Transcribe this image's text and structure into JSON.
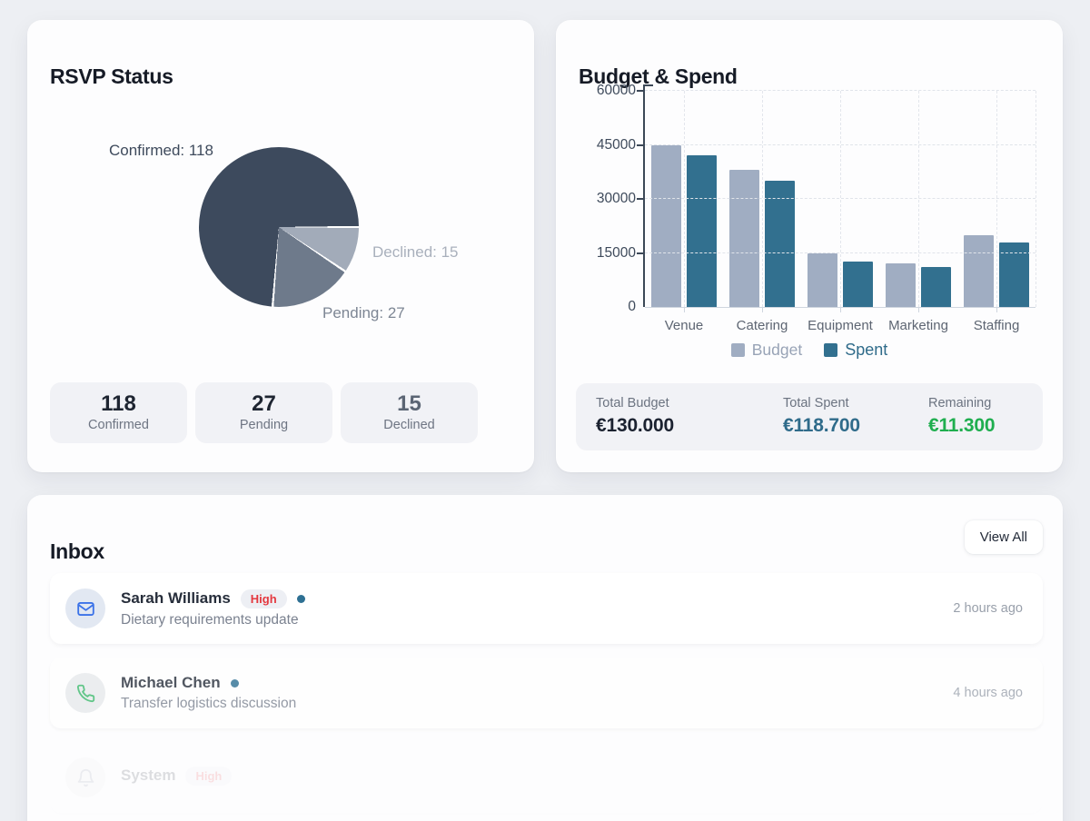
{
  "rsvp_card": {
    "title": "RSVP Status",
    "stats": [
      {
        "value": "118",
        "label": "Confirmed"
      },
      {
        "value": "27",
        "label": "Pending"
      },
      {
        "value": "15",
        "label": "Declined"
      }
    ]
  },
  "budget_card": {
    "title": "Budget & Spend",
    "totals": [
      {
        "label": "Total Budget",
        "value": "€130.000",
        "color": "#1b2230"
      },
      {
        "label": "Total Spent",
        "value": "€118.700",
        "color": "#2f6b8a"
      },
      {
        "label": "Remaining",
        "value": "€11.300",
        "color": "#1fae4f"
      }
    ]
  },
  "inbox_card": {
    "title": "Inbox",
    "view_all_label": "View All",
    "messages": [
      {
        "sender": "Sarah Williams",
        "badge": "High",
        "unread": true,
        "subject": "Dietary requirements update",
        "time": "2 hours ago",
        "icon": "mail",
        "icon_color": "#3b72e8",
        "avatar_bg": "#e2e8f2",
        "opacity": 1
      },
      {
        "sender": "Michael Chen",
        "badge": null,
        "unread": true,
        "subject": "Transfer logistics discussion",
        "time": "4 hours ago",
        "icon": "phone",
        "icon_color": "#3cb96d",
        "avatar_bg": "#e7eaec",
        "opacity": 0.8
      },
      {
        "sender": "System",
        "badge": "High",
        "unread": false,
        "subject": "",
        "time": "",
        "icon": "bell",
        "icon_color": "#8a93a3",
        "avatar_bg": "#eceef0",
        "opacity": 0.15
      }
    ]
  },
  "chart_data": [
    {
      "type": "pie",
      "title": "RSVP Status",
      "labels": [
        "Confirmed",
        "Pending",
        "Declined"
      ],
      "values": [
        118,
        27,
        15
      ],
      "colors": [
        "#3d4a5d",
        "#6e7a8b",
        "#a2abb9"
      ],
      "draw_order": [
        2,
        1,
        0
      ],
      "start": "east-clockwise",
      "separator_color": "#ffffff",
      "callout_labels": [
        "Confirmed: 118",
        "Pending: 27",
        "Declined: 15"
      ]
    },
    {
      "type": "bar",
      "title": "Budget & Spend",
      "categories": [
        "Venue",
        "Catering",
        "Equipment",
        "Marketing",
        "Staffing"
      ],
      "series": [
        {
          "name": "Budget",
          "color": "#a0adc2",
          "text_color": "#98a3b6",
          "values": [
            45000,
            38000,
            15000,
            12000,
            20000
          ]
        },
        {
          "name": "Spent",
          "color": "#32708f",
          "text_color": "#2f6b8a",
          "values": [
            42000,
            35000,
            12500,
            11200,
            18000
          ]
        }
      ],
      "ylim": [
        0,
        60000
      ],
      "yticks": [
        0,
        15000,
        30000,
        45000,
        60000
      ],
      "grid": "dashed",
      "legend_position": "bottom"
    }
  ]
}
